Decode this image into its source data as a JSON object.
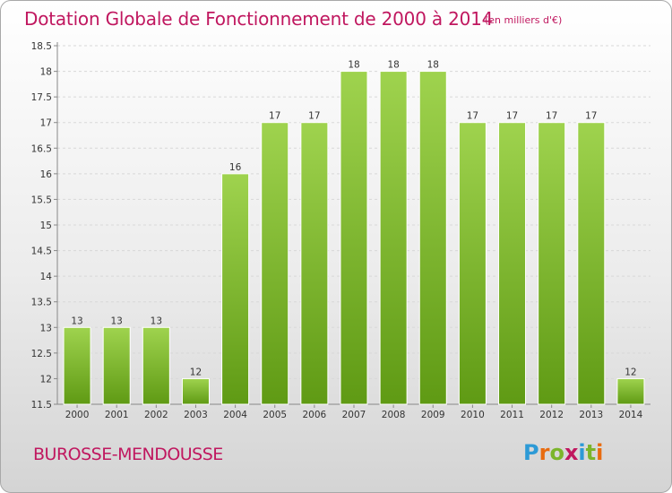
{
  "title": "Dotation Globale de Fonctionnement de 2000 à 2014",
  "subtitle": "(en milliers d'€)",
  "commune": "BUROSSE-MENDOUSSE",
  "logo": {
    "letters": [
      "P",
      "r",
      "o",
      "x",
      "i",
      "t",
      "i"
    ],
    "colors": [
      "#2d9ad6",
      "#e86b0f",
      "#7bb52b",
      "#c0175f",
      "#2d9ad6",
      "#7bb52b",
      "#e86b0f"
    ]
  },
  "colors": {
    "bar_light": "#9fd34e",
    "bar_dark": "#5f9a14",
    "title": "#c0175f"
  },
  "chart_data": {
    "type": "bar",
    "title": "Dotation Globale de Fonctionnement de 2000 à 2014",
    "xlabel": "",
    "ylabel": "",
    "categories": [
      "2000",
      "2001",
      "2002",
      "2003",
      "2004",
      "2005",
      "2006",
      "2007",
      "2008",
      "2009",
      "2010",
      "2011",
      "2012",
      "2013",
      "2014"
    ],
    "values": [
      13,
      13,
      13,
      12,
      16,
      17,
      17,
      18,
      18,
      18,
      17,
      17,
      17,
      17,
      12
    ],
    "labels": [
      "13",
      "13",
      "13",
      "12",
      "16",
      "17",
      "17",
      "18",
      "18",
      "18",
      "17",
      "17",
      "17",
      "17",
      "12"
    ],
    "ylim": [
      11.5,
      18.5
    ],
    "yticks": [
      "11.5",
      "12",
      "12.5",
      "13",
      "13.5",
      "14",
      "14.5",
      "15",
      "15.5",
      "16",
      "16.5",
      "17",
      "17.5",
      "18",
      "18.5"
    ],
    "grid": true
  }
}
